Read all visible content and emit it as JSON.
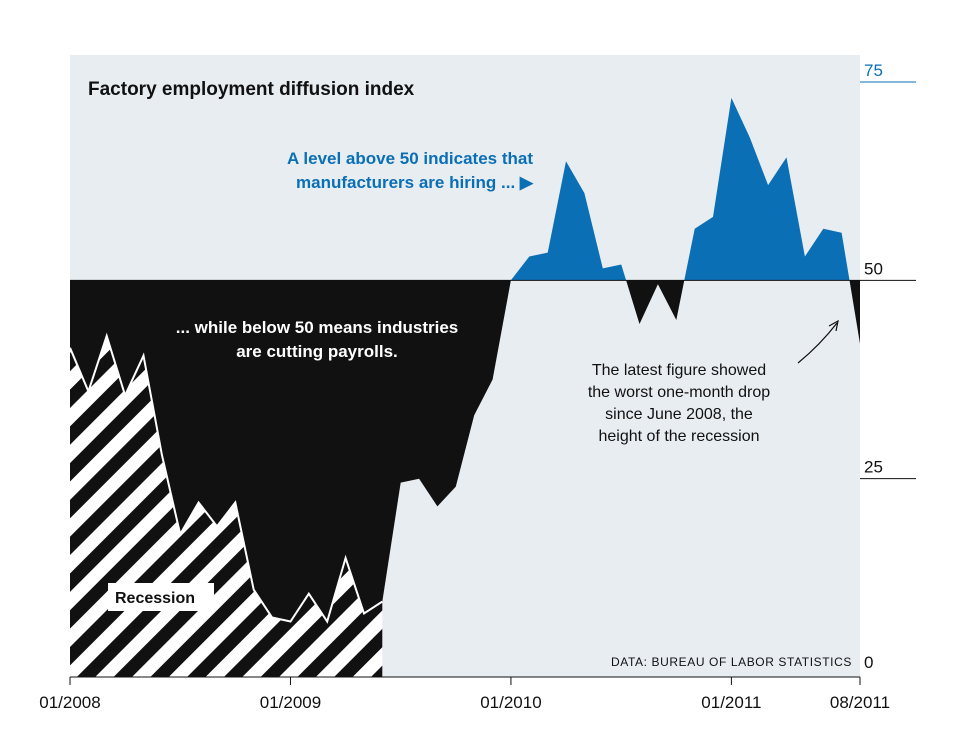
{
  "chart_data": {
    "type": "area",
    "title": "Factory employment diffusion index",
    "baseline": 50,
    "ylim": [
      0,
      75
    ],
    "yticks": [
      {
        "value": 75,
        "label": "75"
      },
      {
        "value": 50,
        "label": "50"
      },
      {
        "value": 25,
        "label": "25"
      },
      {
        "value": 0,
        "label": "0"
      }
    ],
    "xticks": [
      {
        "date": "2008-01",
        "label": "01/2008"
      },
      {
        "date": "2009-01",
        "label": "01/2009"
      },
      {
        "date": "2010-01",
        "label": "01/2010"
      },
      {
        "date": "2011-01",
        "label": "01/2011"
      },
      {
        "date": "2011-08",
        "label": "08/2011"
      }
    ],
    "x": [
      "2008-01",
      "2008-02",
      "2008-03",
      "2008-04",
      "2008-05",
      "2008-06",
      "2008-07",
      "2008-08",
      "2008-09",
      "2008-10",
      "2008-11",
      "2008-12",
      "2009-01",
      "2009-02",
      "2009-03",
      "2009-04",
      "2009-05",
      "2009-06",
      "2009-07",
      "2009-08",
      "2009-09",
      "2009-10",
      "2009-11",
      "2009-12",
      "2010-01",
      "2010-02",
      "2010-03",
      "2010-04",
      "2010-05",
      "2010-06",
      "2010-07",
      "2010-08",
      "2010-09",
      "2010-10",
      "2010-11",
      "2010-12",
      "2011-01",
      "2011-02",
      "2011-03",
      "2011-04",
      "2011-05",
      "2011-06",
      "2011-07",
      "2011-08"
    ],
    "values": [
      41.5,
      36,
      43,
      35.5,
      40.5,
      28,
      18,
      22,
      19,
      22,
      11,
      7.5,
      7,
      10.5,
      7,
      15,
      8,
      9.5,
      24.5,
      25,
      21.5,
      24,
      33,
      37.5,
      50,
      53,
      53.5,
      65,
      61,
      51.5,
      52,
      44.5,
      49.5,
      45,
      56.5,
      58,
      73,
      68,
      62,
      65.5,
      53,
      56.5,
      56,
      42
    ],
    "recession": {
      "start": "2008-01",
      "end": "2009-06",
      "label": "Recession"
    },
    "annotations": {
      "above": [
        "A level above 50 indicates that",
        "manufacturers are hiring ... ▶"
      ],
      "below": [
        "... while below 50 means industries",
        "are cutting payrolls."
      ],
      "latest": [
        "The latest figure showed",
        "the worst one-month drop",
        "since June 2008, the",
        "height of the recession"
      ]
    },
    "source": "DATA: BUREAU OF LABOR STATISTICS",
    "colors": {
      "background": "#e8edf1",
      "above": "#0a6fb5",
      "below": "#111111",
      "recession_stripe": "#ffffff",
      "top_tick": "#0a6fb5"
    }
  }
}
